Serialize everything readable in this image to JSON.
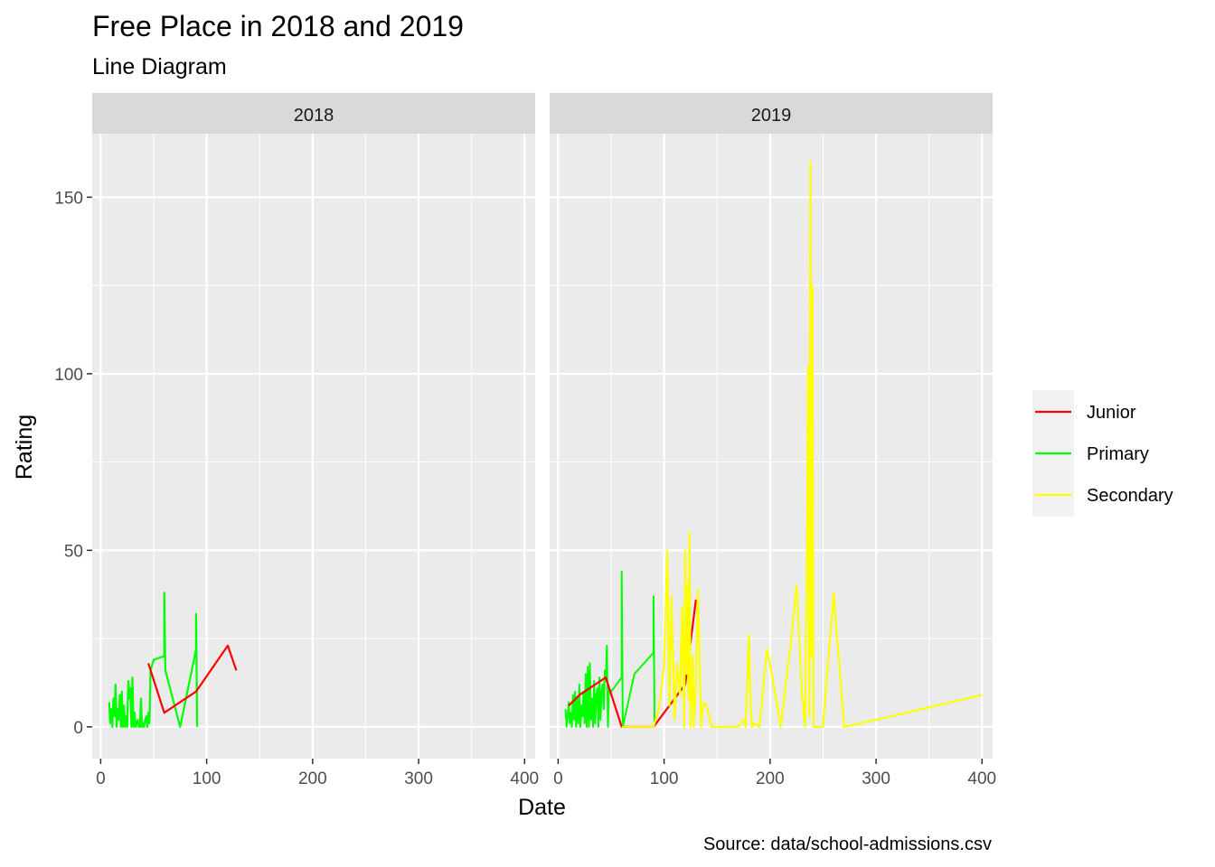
{
  "chart_data": {
    "type": "line",
    "title": "Free Place in 2018 and 2019",
    "subtitle": "Line Diagram",
    "xlabel": "Date",
    "ylabel": "Rating",
    "caption": "Source: data/school-admissions.csv",
    "xlim": [
      -8,
      410
    ],
    "ylim": [
      -9,
      168
    ],
    "x_ticks": [
      0,
      100,
      200,
      300,
      400
    ],
    "y_ticks": [
      0,
      50,
      100,
      150
    ],
    "grid": true,
    "legend_position": "right",
    "colors": {
      "Junior": "#ff0000",
      "Primary": "#00ff00",
      "Secondary": "#ffff00"
    },
    "legend": [
      "Junior",
      "Primary",
      "Secondary"
    ],
    "panels": [
      {
        "strip": "2018",
        "series": [
          {
            "name": "Primary",
            "x": [
              8,
              9,
              10,
              11,
              12,
              13,
              14,
              15,
              16,
              17,
              18,
              19,
              20,
              21,
              22,
              23,
              24,
              25,
              26,
              27,
              28,
              29,
              30,
              31,
              32,
              33,
              34,
              35,
              36,
              37,
              38,
              39,
              40,
              41,
              42,
              43,
              44,
              45,
              46,
              47,
              50,
              60,
              60,
              61,
              75,
              90,
              90,
              91
            ],
            "y": [
              7,
              1,
              5,
              0,
              8,
              3,
              12,
              0,
              5,
              2,
              9,
              0,
              10,
              0,
              6,
              0,
              3,
              0,
              13,
              8,
              11,
              0,
              14,
              0,
              4,
              0,
              1,
              2,
              0,
              0,
              8,
              0,
              1,
              0,
              2,
              3,
              0,
              4,
              1,
              16,
              19,
              20,
              38,
              16,
              0,
              22,
              32,
              0
            ]
          },
          {
            "name": "Junior",
            "x": [
              45,
              60,
              90,
              120,
              128
            ],
            "y": [
              18,
              4,
              10,
              23,
              16
            ]
          }
        ]
      },
      {
        "strip": "2019",
        "series": [
          {
            "name": "Primary",
            "x": [
              7,
              8,
              9,
              10,
              11,
              12,
              13,
              14,
              15,
              16,
              17,
              18,
              19,
              20,
              21,
              22,
              23,
              24,
              25,
              26,
              27,
              28,
              29,
              30,
              31,
              32,
              33,
              34,
              35,
              36,
              37,
              38,
              39,
              40,
              41,
              42,
              43,
              44,
              45,
              46,
              47,
              48,
              50,
              60,
              60,
              61,
              72,
              75,
              90,
              90,
              91
            ],
            "y": [
              5,
              0,
              3,
              7,
              1,
              4,
              0,
              9,
              2,
              10,
              0,
              8,
              1,
              12,
              0,
              6,
              3,
              10,
              1,
              15,
              0,
              17,
              0,
              18,
              2,
              8,
              0,
              13,
              1,
              9,
              11,
              0,
              14,
              2,
              10,
              12,
              5,
              16,
              13,
              23,
              0,
              11,
              10,
              14,
              44,
              0,
              15,
              16,
              21,
              37,
              0
            ],
            "width": 2
          },
          {
            "name": "Junior",
            "x": [
              10,
              20,
              30,
              40,
              45,
              60,
              90,
              100,
              110,
              120,
              130
            ],
            "y": [
              6,
              9,
              11,
              13,
              14,
              0,
              0,
              4,
              8,
              12,
              36
            ]
          },
          {
            "name": "Secondary",
            "x": [
              60,
              90,
              95,
              100,
              103,
              105,
              107,
              110,
              112,
              115,
              117,
              119,
              120,
              121,
              122,
              123,
              124,
              125,
              127,
              128,
              130,
              132,
              135,
              137,
              140,
              145,
              150,
              160,
              170,
              175,
              177,
              180,
              182,
              183,
              185,
              190,
              197,
              200,
              210,
              220,
              225,
              230,
              233,
              235,
              236,
              237,
              238,
              239,
              240,
              241,
              245,
              250,
              260,
              262,
              270,
              300,
              400
            ],
            "y": [
              0,
              0,
              5,
              17,
              50,
              6,
              37,
              2,
              18,
              9,
              34,
              0,
              50,
              15,
              40,
              8,
              55,
              0,
              20,
              0,
              12,
              39,
              0,
              7,
              6,
              0,
              0,
              0,
              0,
              2,
              0,
              26,
              5,
              0,
              1,
              0,
              22,
              18,
              0,
              25,
              40,
              10,
              0,
              55,
              102,
              3,
              160,
              20,
              125,
              0,
              0,
              0,
              38,
              30,
              0,
              2,
              9
            ]
          }
        ]
      }
    ]
  }
}
